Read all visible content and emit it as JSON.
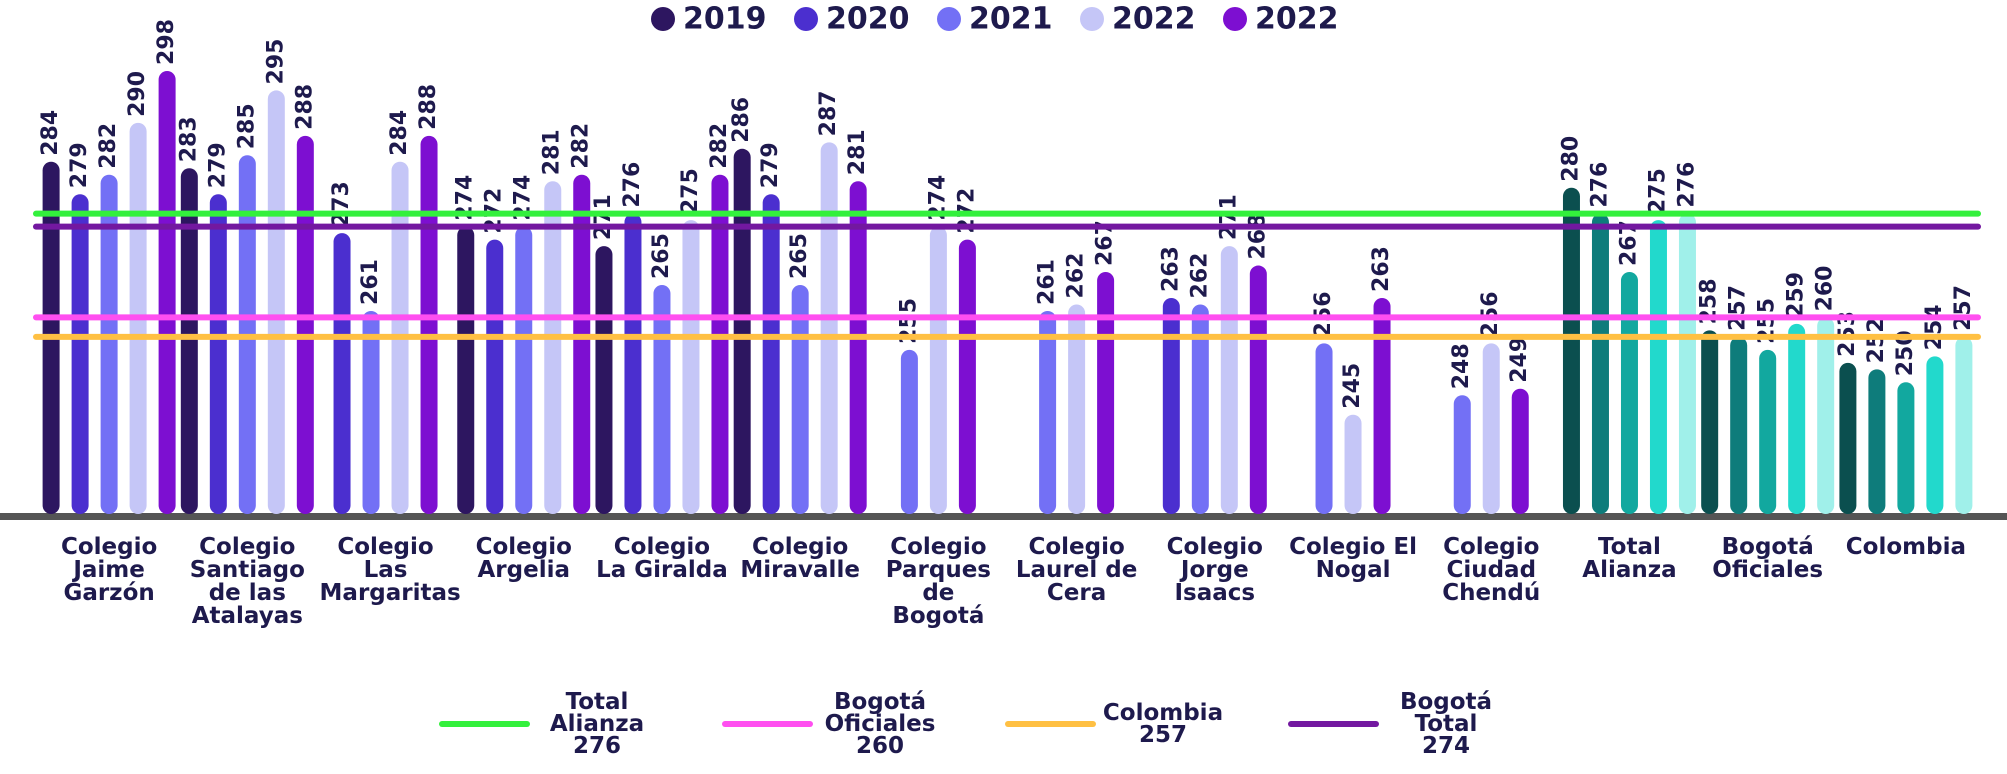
{
  "chart_data": {
    "type": "bar",
    "categories": [
      "Colegio Jaime Garzón",
      "Colegio Santiago de las Atalayas",
      "Colegio Las Margaritas",
      "Colegio Argelia",
      "Colegio La Giralda",
      "Colegio Miravalle",
      "Colegio Parques de Bogotá",
      "Colegio Laurel de Cera",
      "Colegio Jorge Isaacs",
      "Colegio El Nogal",
      "Colegio Ciudad Chendú",
      "Total Alianza",
      "Bogotá Oficiales",
      "Colombia"
    ],
    "series": [
      {
        "name": "2019",
        "color": "#2d1660",
        "values": [
          284,
          283,
          null,
          274,
          271,
          286,
          null,
          null,
          null,
          null,
          null,
          280,
          258,
          253
        ],
        "colors": [
          "#2d1660",
          "#2d1660",
          "#2d1660",
          "#2d1660",
          "#2d1660",
          "#2d1660",
          "#2d1660",
          "#2d1660",
          "#2d1660",
          "#2d1660",
          "#2d1660",
          "#0b4f4f",
          "#0b4f4f",
          "#0b4f4f"
        ]
      },
      {
        "name": "2020",
        "color": "#4b2fcf",
        "values": [
          279,
          279,
          273,
          272,
          276,
          279,
          null,
          null,
          263,
          null,
          null,
          276,
          257,
          252
        ],
        "colors": [
          "#4b2fcf",
          "#4b2fcf",
          "#4b2fcf",
          "#4b2fcf",
          "#4b2fcf",
          "#4b2fcf",
          "#4b2fcf",
          "#4b2fcf",
          "#4b2fcf",
          "#4b2fcf",
          "#4b2fcf",
          "#0e7c7b",
          "#0e7c7b",
          "#0e7c7b"
        ]
      },
      {
        "name": "2021",
        "color": "#7370f5",
        "values": [
          282,
          285,
          261,
          274,
          265,
          265,
          255,
          261,
          262,
          256,
          248,
          267,
          255,
          250
        ],
        "colors": [
          "#7370f5",
          "#7370f5",
          "#7370f5",
          "#7370f5",
          "#7370f5",
          "#7370f5",
          "#7370f5",
          "#7370f5",
          "#7370f5",
          "#7370f5",
          "#7370f5",
          "#12a89f",
          "#12a89f",
          "#12a89f"
        ]
      },
      {
        "name": "2022",
        "color": "#c5c6f7",
        "values": [
          290,
          295,
          284,
          281,
          275,
          287,
          274,
          262,
          271,
          245,
          256,
          275,
          259,
          254
        ],
        "colors": [
          "#c5c6f7",
          "#c5c6f7",
          "#c5c6f7",
          "#c5c6f7",
          "#c5c6f7",
          "#c5c6f7",
          "#c5c6f7",
          "#c5c6f7",
          "#c5c6f7",
          "#c5c6f7",
          "#c5c6f7",
          "#22d9cc",
          "#22d9cc",
          "#22d9cc"
        ]
      },
      {
        "name": "2022",
        "color": "#7d0fd1",
        "values": [
          298,
          288,
          288,
          282,
          282,
          281,
          272,
          267,
          268,
          263,
          249,
          276,
          260,
          257
        ],
        "colors": [
          "#7d0fd1",
          "#7d0fd1",
          "#7d0fd1",
          "#7d0fd1",
          "#7d0fd1",
          "#7d0fd1",
          "#7d0fd1",
          "#7d0fd1",
          "#7d0fd1",
          "#7d0fd1",
          "#7d0fd1",
          "#a0f0ea",
          "#a0f0ea",
          "#a0f0ea"
        ]
      }
    ],
    "lines": [
      {
        "name": "Total Alianza",
        "value": 276,
        "color": "#33f03c"
      },
      {
        "name": "Bogotá Oficiales",
        "value": 260,
        "color": "#ff4ff0"
      },
      {
        "name": "Colombia",
        "value": 257,
        "color": "#ffc043"
      },
      {
        "name": "Bogotá Total",
        "value": 274,
        "color": "#7318a0"
      }
    ],
    "ylim": [
      230,
      300
    ]
  }
}
